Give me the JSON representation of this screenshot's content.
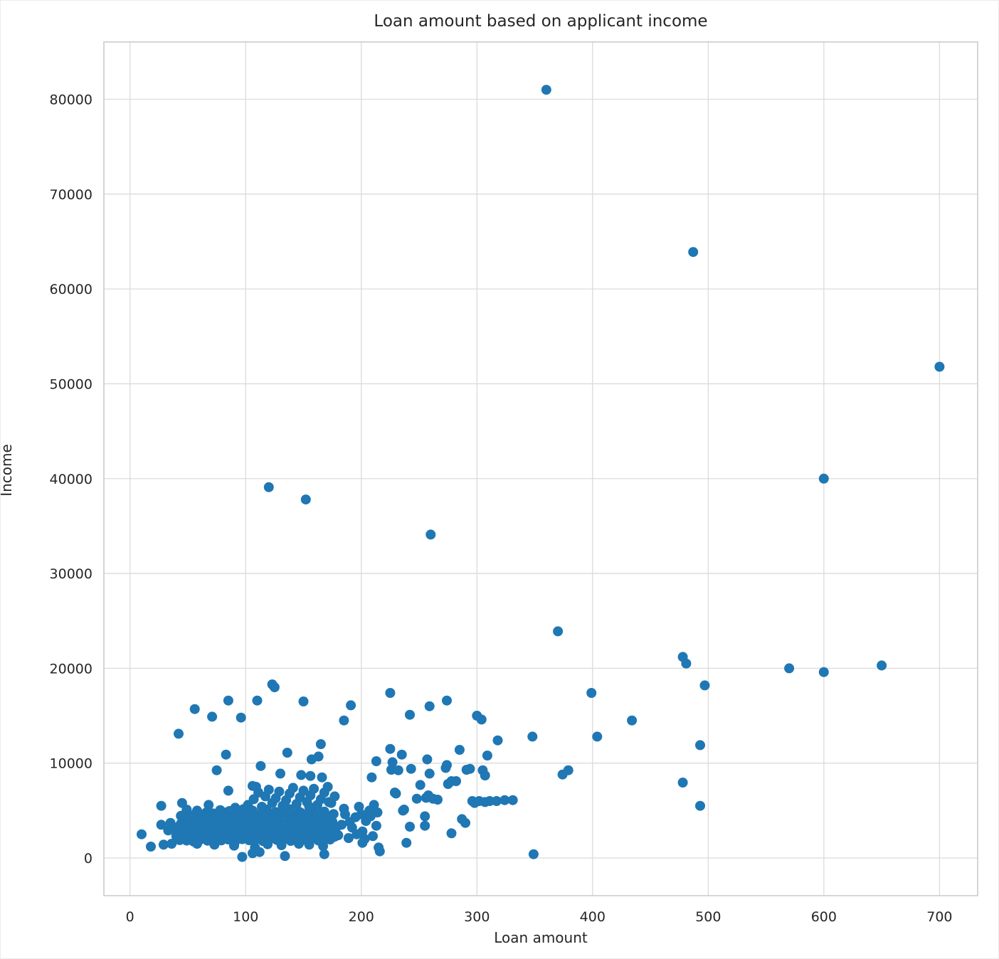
{
  "chart_data": {
    "type": "scatter",
    "title": "Loan amount based on applicant income",
    "xlabel": "Loan amount",
    "ylabel": "Income",
    "x_ticks": [
      0,
      100,
      200,
      300,
      400,
      500,
      600,
      700
    ],
    "y_ticks": [
      0,
      10000,
      20000,
      30000,
      40000,
      50000,
      60000,
      70000,
      80000
    ],
    "xlim": [
      -22.6,
      733
    ],
    "ylim": [
      -3975,
      86040
    ],
    "grid": true,
    "legend": "none",
    "marker_color": "#1f77b4",
    "marker_radius": 7,
    "grid_color": "#dbdbdb",
    "spine_color": "#c9c9c9",
    "text_color": "#262626",
    "background_color": "#ffffff",
    "points": [
      [
        360,
        81000
      ],
      [
        487,
        63900
      ],
      [
        700,
        51800
      ],
      [
        600,
        40000
      ],
      [
        120,
        39100
      ],
      [
        152,
        37800
      ],
      [
        260,
        34100
      ],
      [
        370,
        23900
      ],
      [
        478,
        21200
      ],
      [
        481,
        20500
      ],
      [
        570,
        20000
      ],
      [
        650,
        20300
      ],
      [
        600,
        19600
      ],
      [
        497,
        18200
      ],
      [
        123,
        18300
      ],
      [
        125,
        18000
      ],
      [
        399,
        17400
      ],
      [
        225,
        17400
      ],
      [
        85,
        16600
      ],
      [
        110,
        16600
      ],
      [
        150,
        16500
      ],
      [
        191,
        16100
      ],
      [
        259,
        16000
      ],
      [
        274,
        16600
      ],
      [
        56,
        15700
      ],
      [
        71,
        14900
      ],
      [
        96,
        14800
      ],
      [
        242,
        15100
      ],
      [
        300,
        15000
      ],
      [
        304,
        14600
      ],
      [
        185,
        14500
      ],
      [
        434,
        14500
      ],
      [
        42,
        13100
      ],
      [
        318,
        12400
      ],
      [
        348,
        12800
      ],
      [
        404,
        12800
      ],
      [
        165,
        12000
      ],
      [
        493,
        11900
      ],
      [
        83,
        10900
      ],
      [
        136,
        11100
      ],
      [
        225,
        11500
      ],
      [
        235,
        10900
      ],
      [
        285,
        11400
      ],
      [
        309,
        10800
      ],
      [
        113,
        9700
      ],
      [
        157,
        10400
      ],
      [
        163,
        10700
      ],
      [
        213,
        10200
      ],
      [
        227,
        10100
      ],
      [
        257,
        10400
      ],
      [
        274,
        9800
      ],
      [
        75,
        9250
      ],
      [
        130,
        8900
      ],
      [
        148,
        8750
      ],
      [
        156,
        8650
      ],
      [
        166,
        8500
      ],
      [
        226,
        9300
      ],
      [
        232,
        9250
      ],
      [
        243,
        9400
      ],
      [
        259,
        8900
      ],
      [
        273,
        9500
      ],
      [
        291,
        9300
      ],
      [
        294,
        9400
      ],
      [
        305,
        9250
      ],
      [
        374,
        8800
      ],
      [
        379,
        9250
      ],
      [
        209,
        8500
      ],
      [
        275,
        7800
      ],
      [
        278,
        8100
      ],
      [
        282,
        8100
      ],
      [
        307,
        8700
      ],
      [
        478,
        7950
      ],
      [
        85,
        7100
      ],
      [
        106,
        7600
      ],
      [
        109,
        7500
      ],
      [
        251,
        7700
      ],
      [
        229,
        6900
      ],
      [
        230,
        6800
      ],
      [
        248,
        6250
      ],
      [
        256,
        6350
      ],
      [
        258,
        6600
      ],
      [
        262,
        6250
      ],
      [
        266,
        6150
      ],
      [
        296,
        6000
      ],
      [
        302,
        6000
      ],
      [
        311,
        6000
      ],
      [
        317,
        6000
      ],
      [
        324,
        6100
      ],
      [
        331,
        6100
      ],
      [
        27,
        5500
      ],
      [
        45,
        5800
      ],
      [
        49,
        5100
      ],
      [
        68,
        5600
      ],
      [
        91,
        5300
      ],
      [
        172,
        5900
      ],
      [
        237,
        5100
      ],
      [
        236,
        5000
      ],
      [
        298,
        5800
      ],
      [
        307,
        5900
      ],
      [
        493,
        5500
      ],
      [
        72,
        4700
      ],
      [
        83,
        4800
      ],
      [
        255,
        4400
      ],
      [
        287,
        4100
      ],
      [
        27,
        3500
      ],
      [
        33,
        2900
      ],
      [
        35,
        3700
      ],
      [
        39,
        3200
      ],
      [
        242,
        3300
      ],
      [
        255,
        3400
      ],
      [
        290,
        3700
      ],
      [
        10,
        2500
      ],
      [
        278,
        2600
      ],
      [
        18,
        1200
      ],
      [
        29,
        1400
      ],
      [
        36,
        1500
      ],
      [
        167,
        1250
      ],
      [
        201,
        1600
      ],
      [
        215,
        1100
      ],
      [
        216,
        700
      ],
      [
        239,
        1600
      ],
      [
        97,
        110
      ],
      [
        106,
        500
      ],
      [
        112,
        620
      ],
      [
        134,
        200
      ],
      [
        168,
        400
      ],
      [
        349,
        400
      ],
      [
        40,
        2320
      ],
      [
        41,
        3140
      ],
      [
        43,
        1880
      ],
      [
        43,
        2720
      ],
      [
        44,
        3620
      ],
      [
        46,
        4180
      ],
      [
        46,
        2240
      ],
      [
        48,
        3340
      ],
      [
        49,
        1840
      ],
      [
        50,
        2630
      ],
      [
        50,
        3920
      ],
      [
        52,
        4420
      ],
      [
        53,
        2410
      ],
      [
        54,
        3230
      ],
      [
        55,
        1730
      ],
      [
        56,
        2940
      ],
      [
        57,
        3760
      ],
      [
        58,
        2120
      ],
      [
        59,
        3440
      ],
      [
        60,
        4230
      ],
      [
        61,
        1960
      ],
      [
        62,
        2640
      ],
      [
        63,
        3820
      ],
      [
        64,
        4560
      ],
      [
        64,
        2330
      ],
      [
        66,
        3160
      ],
      [
        67,
        1820
      ],
      [
        68,
        2840
      ],
      [
        69,
        3640
      ],
      [
        70,
        4420
      ],
      [
        70,
        2230
      ],
      [
        72,
        3360
      ],
      [
        73,
        1920
      ],
      [
        74,
        2760
      ],
      [
        75,
        3960
      ],
      [
        76,
        4660
      ],
      [
        77,
        2460
      ],
      [
        78,
        3260
      ],
      [
        79,
        1850
      ],
      [
        80,
        2960
      ],
      [
        81,
        3720
      ],
      [
        82,
        4540
      ],
      [
        83,
        2160
      ],
      [
        84,
        3060
      ],
      [
        85,
        1950
      ],
      [
        86,
        2680
      ],
      [
        87,
        3560
      ],
      [
        88,
        4320
      ],
      [
        88,
        2380
      ],
      [
        90,
        3380
      ],
      [
        91,
        1760
      ],
      [
        92,
        2880
      ],
      [
        93,
        3680
      ],
      [
        94,
        4480
      ],
      [
        95,
        2280
      ],
      [
        96,
        3180
      ],
      [
        97,
        1980
      ],
      [
        98,
        2780
      ],
      [
        99,
        3980
      ],
      [
        100,
        4700
      ],
      [
        101,
        2480
      ],
      [
        102,
        3280
      ],
      [
        103,
        1870
      ],
      [
        104,
        2980
      ],
      [
        105,
        3780
      ],
      [
        106,
        4580
      ],
      [
        107,
        2180
      ],
      [
        108,
        3080
      ],
      [
        109,
        1960
      ],
      [
        110,
        2680
      ],
      [
        111,
        3580
      ],
      [
        112,
        4380
      ],
      [
        113,
        2400
      ],
      [
        114,
        3400
      ],
      [
        115,
        1780
      ],
      [
        116,
        2900
      ],
      [
        117,
        3700
      ],
      [
        118,
        4500
      ],
      [
        119,
        2300
      ],
      [
        120,
        3200
      ],
      [
        121,
        2000
      ],
      [
        122,
        2800
      ],
      [
        123,
        4000
      ],
      [
        124,
        4740
      ],
      [
        125,
        2500
      ],
      [
        126,
        3300
      ],
      [
        127,
        1900
      ],
      [
        128,
        3000
      ],
      [
        129,
        3800
      ],
      [
        130,
        4600
      ],
      [
        131,
        2200
      ],
      [
        132,
        3100
      ],
      [
        133,
        1980
      ],
      [
        134,
        2700
      ],
      [
        135,
        3600
      ],
      [
        136,
        4400
      ],
      [
        137,
        2420
      ],
      [
        138,
        3420
      ],
      [
        139,
        1800
      ],
      [
        140,
        2920
      ],
      [
        141,
        3720
      ],
      [
        142,
        4520
      ],
      [
        143,
        2320
      ],
      [
        144,
        3220
      ],
      [
        145,
        2020
      ],
      [
        146,
        2820
      ],
      [
        147,
        4020
      ],
      [
        148,
        4760
      ],
      [
        149,
        2520
      ],
      [
        150,
        3320
      ],
      [
        151,
        1920
      ],
      [
        152,
        3020
      ],
      [
        153,
        3820
      ],
      [
        154,
        4620
      ],
      [
        155,
        2220
      ],
      [
        156,
        3120
      ],
      [
        157,
        2000
      ],
      [
        158,
        2720
      ],
      [
        159,
        3620
      ],
      [
        160,
        4420
      ],
      [
        161,
        2440
      ],
      [
        162,
        3440
      ],
      [
        163,
        1840
      ],
      [
        164,
        2940
      ],
      [
        165,
        3740
      ],
      [
        166,
        4540
      ],
      [
        167,
        2340
      ],
      [
        168,
        3240
      ],
      [
        169,
        2040
      ],
      [
        170,
        2840
      ],
      [
        171,
        4040
      ],
      [
        172,
        3340
      ],
      [
        173,
        1940
      ],
      [
        174,
        3040
      ],
      [
        175,
        3840
      ],
      [
        176,
        4640
      ],
      [
        177,
        2240
      ],
      [
        178,
        3140
      ],
      [
        48,
        4700
      ],
      [
        58,
        5000
      ],
      [
        78,
        5050
      ],
      [
        98,
        5150
      ],
      [
        118,
        5100
      ],
      [
        138,
        5150
      ],
      [
        158,
        5050
      ],
      [
        168,
        4900
      ],
      [
        66,
        4800
      ],
      [
        86,
        4950
      ],
      [
        106,
        5000
      ],
      [
        126,
        4850
      ],
      [
        146,
        4900
      ],
      [
        166,
        4750
      ],
      [
        54,
        4480
      ],
      [
        74,
        4280
      ],
      [
        94,
        4680
      ],
      [
        114,
        4780
      ],
      [
        134,
        4880
      ],
      [
        154,
        4380
      ],
      [
        174,
        4280
      ],
      [
        44,
        4440
      ],
      [
        64,
        4340
      ],
      [
        84,
        4240
      ],
      [
        104,
        4140
      ],
      [
        124,
        4240
      ],
      [
        144,
        4140
      ],
      [
        164,
        4040
      ],
      [
        102,
        5600
      ],
      [
        107,
        6200
      ],
      [
        111,
        6900
      ],
      [
        114,
        5400
      ],
      [
        117,
        6500
      ],
      [
        120,
        7200
      ],
      [
        123,
        5800
      ],
      [
        126,
        6300
      ],
      [
        129,
        7000
      ],
      [
        132,
        5500
      ],
      [
        135,
        6100
      ],
      [
        138,
        6800
      ],
      [
        141,
        7400
      ],
      [
        144,
        5700
      ],
      [
        147,
        6400
      ],
      [
        150,
        7100
      ],
      [
        153,
        5900
      ],
      [
        156,
        6600
      ],
      [
        159,
        7300
      ],
      [
        162,
        5600
      ],
      [
        165,
        6200
      ],
      [
        168,
        6900
      ],
      [
        171,
        7500
      ],
      [
        174,
        5800
      ],
      [
        177,
        6500
      ],
      [
        155,
        5400
      ],
      [
        180,
        2400
      ],
      [
        183,
        3500
      ],
      [
        186,
        4600
      ],
      [
        189,
        2100
      ],
      [
        192,
        3200
      ],
      [
        195,
        4300
      ],
      [
        198,
        5400
      ],
      [
        201,
        2800
      ],
      [
        204,
        3900
      ],
      [
        207,
        5000
      ],
      [
        210,
        2300
      ],
      [
        213,
        3400
      ],
      [
        196,
        2500
      ],
      [
        208,
        4400
      ],
      [
        185,
        5200
      ],
      [
        203,
        2000
      ],
      [
        214,
        4800
      ],
      [
        190,
        3800
      ],
      [
        200,
        4600
      ],
      [
        211,
        5600
      ],
      [
        58,
        1500
      ],
      [
        73,
        1400
      ],
      [
        90,
        1300
      ],
      [
        108,
        1100
      ],
      [
        119,
        1450
      ],
      [
        131,
        1350
      ],
      [
        146,
        1500
      ],
      [
        155,
        1400
      ]
    ]
  }
}
